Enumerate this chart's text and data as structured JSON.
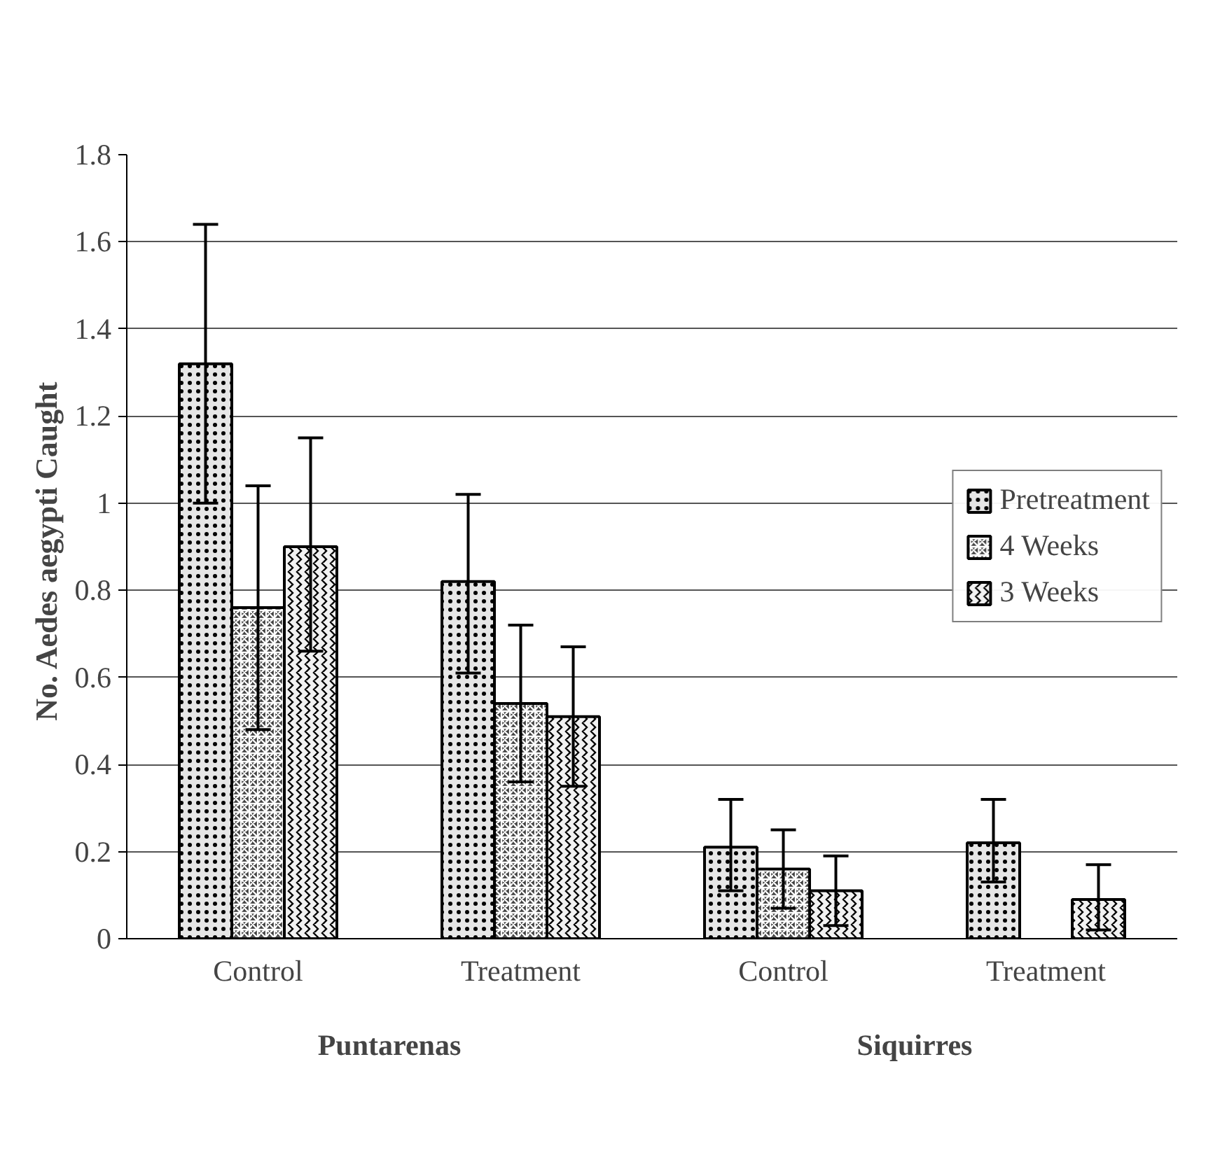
{
  "chart_data": {
    "type": "bar",
    "ylabel": "No. Aedes aegypti  Caught",
    "categories": [
      "Control",
      "Treatment",
      "Control",
      "Treatment"
    ],
    "annotations": [
      "Puntarenas",
      "Siquirres"
    ],
    "series": [
      {
        "name": "Pretreatment",
        "color": "#e6e6e6",
        "values": [
          1.32,
          0.82,
          0.21,
          0.22
        ],
        "errors": [
          [
            1.0,
            1.64
          ],
          [
            0.61,
            1.02
          ],
          [
            0.11,
            0.32
          ],
          [
            0.13,
            0.32
          ]
        ]
      },
      {
        "name": "4 Weeks",
        "color": "#404040",
        "values": [
          0.76,
          0.54,
          0.16,
          null
        ],
        "errors": [
          [
            0.48,
            1.04
          ],
          [
            0.36,
            0.72
          ],
          [
            0.07,
            0.25
          ],
          null
        ]
      },
      {
        "name": "3 Weeks",
        "color": "#f2f2f2",
        "values": [
          0.9,
          0.51,
          0.11,
          0.09
        ],
        "errors": [
          [
            0.66,
            1.15
          ],
          [
            0.35,
            0.67
          ],
          [
            0.03,
            0.19
          ],
          [
            0.02,
            0.17
          ]
        ]
      }
    ],
    "ylim": [
      0,
      1.8
    ],
    "yticks": [
      0,
      0.2,
      0.4,
      0.6,
      0.8,
      1,
      1.2,
      1.4,
      1.6,
      1.8
    ],
    "grid": "y",
    "legend": "right"
  }
}
